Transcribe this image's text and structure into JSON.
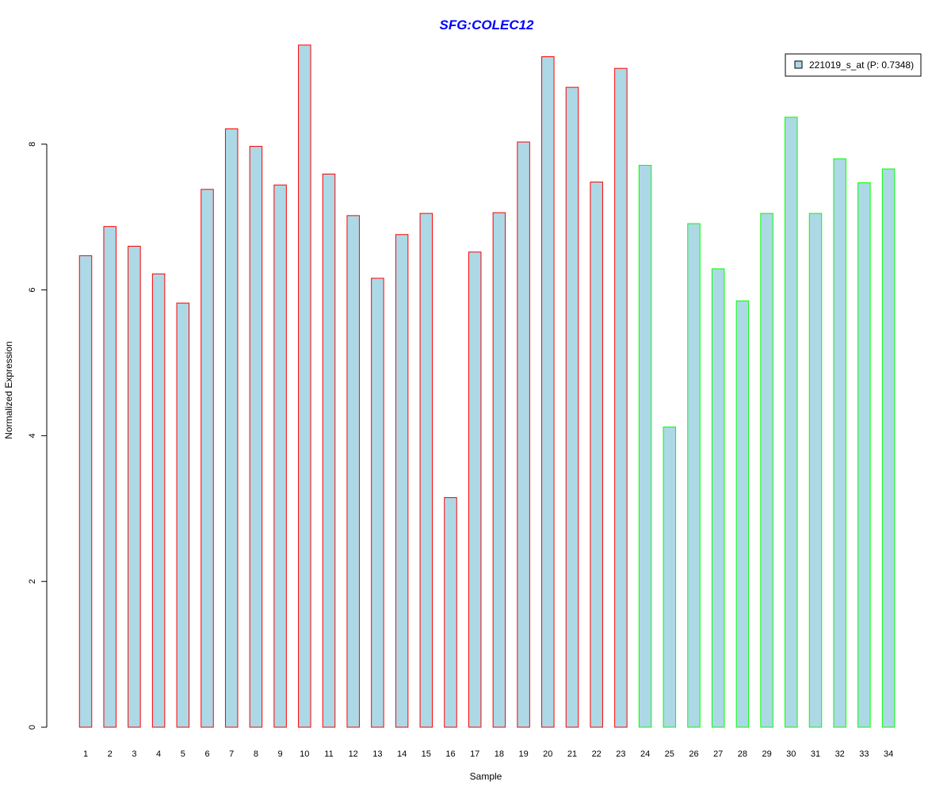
{
  "chart_data": {
    "type": "bar",
    "title": "SFG:COLEC12",
    "xlabel": "Sample",
    "ylabel": "Normalized Expression",
    "categories": [
      "1",
      "2",
      "3",
      "4",
      "5",
      "6",
      "7",
      "8",
      "9",
      "10",
      "11",
      "12",
      "13",
      "14",
      "15",
      "16",
      "17",
      "18",
      "19",
      "20",
      "21",
      "22",
      "23",
      "24",
      "25",
      "26",
      "27",
      "28",
      "29",
      "30",
      "31",
      "32",
      "33",
      "34"
    ],
    "series": [
      {
        "name": "221019_s_at (P: 0.7348)",
        "values": [
          6.47,
          6.87,
          6.6,
          6.22,
          5.82,
          7.38,
          8.21,
          7.97,
          7.44,
          9.36,
          7.59,
          7.02,
          6.16,
          6.76,
          7.05,
          3.15,
          6.52,
          7.06,
          8.03,
          9.2,
          8.78,
          7.48,
          9.04,
          7.71,
          4.12,
          6.91,
          6.29,
          5.85,
          7.05,
          8.37,
          7.05,
          7.8,
          7.47,
          7.66
        ]
      }
    ],
    "ylim": [
      0,
      9.36
    ],
    "yticks": [
      0,
      2,
      4,
      6,
      8
    ],
    "legend_position": "top-right",
    "grid": false,
    "colors": {
      "bar_fill": "#add8e6",
      "group1_border": "#ff0000",
      "group2_border": "#00ff00",
      "title": "#0000ff"
    },
    "groups": [
      {
        "samples": [
          1,
          23
        ],
        "border": "#ff0000"
      },
      {
        "samples": [
          24,
          34
        ],
        "border": "#00ff00"
      }
    ]
  }
}
